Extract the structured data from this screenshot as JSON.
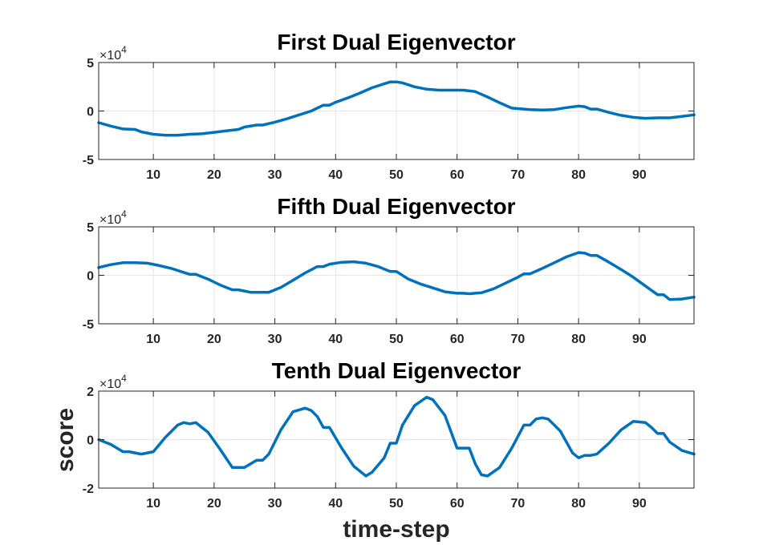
{
  "figure": {
    "xlabel": "time-step",
    "ylabel": "score"
  },
  "chart_data": [
    {
      "type": "line",
      "title": "First Dual Eigenvector",
      "xlabel": "",
      "ylabel": "",
      "xlim": [
        1,
        99
      ],
      "ylim": [
        -50000,
        50000
      ],
      "xticks": [
        10,
        20,
        30,
        40,
        50,
        60,
        70,
        80,
        90
      ],
      "yticks": [
        -5,
        0,
        5
      ],
      "exponent_label": "×10",
      "exponent_power": "4",
      "grid": true,
      "line_color": "#0072BD",
      "series": [
        {
          "x": [
            1,
            3,
            5,
            7,
            8,
            10,
            12,
            14,
            16,
            18,
            20,
            22,
            24,
            25,
            27,
            28,
            30,
            32,
            34,
            36,
            38,
            39,
            40,
            42,
            44,
            46,
            48,
            49,
            50,
            51,
            53,
            55,
            57,
            59,
            61,
            63,
            65,
            67,
            69,
            71,
            72,
            74,
            76,
            78,
            80,
            81,
            82,
            83,
            85,
            87,
            89,
            91,
            93,
            95,
            97,
            99
          ],
          "y": [
            -12000,
            -15500,
            -18500,
            -19000,
            -21500,
            -24000,
            -25000,
            -25000,
            -24000,
            -23500,
            -22000,
            -20500,
            -19000,
            -16500,
            -14500,
            -14500,
            -11500,
            -8000,
            -4000,
            0,
            6000,
            6000,
            9000,
            13500,
            18500,
            24000,
            28000,
            30000,
            30000,
            29000,
            25000,
            22500,
            21500,
            21500,
            21500,
            20000,
            14500,
            8500,
            3000,
            2000,
            1500,
            1000,
            1500,
            3500,
            5000,
            4500,
            2000,
            2000,
            -1500,
            -4500,
            -6500,
            -7500,
            -7000,
            -7000,
            -5500,
            -4000
          ]
        }
      ]
    },
    {
      "type": "line",
      "title": "Fifth Dual Eigenvector",
      "xlabel": "",
      "ylabel": "",
      "xlim": [
        1,
        99
      ],
      "ylim": [
        -50000,
        50000
      ],
      "xticks": [
        10,
        20,
        30,
        40,
        50,
        60,
        70,
        80,
        90
      ],
      "yticks": [
        -5,
        0,
        5
      ],
      "exponent_label": "×10",
      "exponent_power": "4",
      "grid": true,
      "line_color": "#0072BD",
      "series": [
        {
          "x": [
            1,
            3,
            5,
            7,
            9,
            11,
            13,
            15,
            16,
            17,
            19,
            21,
            23,
            24,
            26,
            28,
            29,
            31,
            33,
            35,
            37,
            38,
            39,
            41,
            43,
            45,
            47,
            49,
            50,
            52,
            54,
            56,
            58,
            60,
            61,
            62,
            64,
            66,
            68,
            70,
            71,
            72,
            74,
            76,
            78,
            80,
            81,
            82,
            83,
            85,
            87,
            89,
            91,
            93,
            94,
            95,
            97,
            99
          ],
          "y": [
            8000,
            11000,
            13000,
            13000,
            12500,
            10000,
            7000,
            3000,
            1000,
            1000,
            -4000,
            -10000,
            -15000,
            -15000,
            -17500,
            -17500,
            -17500,
            -12500,
            -5000,
            2500,
            9000,
            9000,
            11500,
            13500,
            14000,
            12500,
            9000,
            4000,
            4000,
            -4000,
            -9000,
            -13000,
            -17000,
            -18500,
            -18500,
            -19000,
            -18000,
            -14000,
            -8000,
            -2000,
            1500,
            1500,
            7000,
            13000,
            19000,
            23500,
            23000,
            20500,
            20500,
            13500,
            6000,
            -2000,
            -11000,
            -20000,
            -20000,
            -25000,
            -24500,
            -22500
          ]
        }
      ]
    },
    {
      "type": "line",
      "title": "Tenth Dual Eigenvector",
      "xlabel": "",
      "ylabel": "",
      "xlim": [
        1,
        99
      ],
      "ylim": [
        -20000,
        20000
      ],
      "xticks": [
        10,
        20,
        30,
        40,
        50,
        60,
        70,
        80,
        90
      ],
      "yticks": [
        -2,
        0,
        2
      ],
      "exponent_label": "×10",
      "exponent_power": "4",
      "grid": true,
      "line_color": "#0072BD",
      "series": [
        {
          "x": [
            1,
            3,
            5,
            6,
            8,
            9,
            10,
            12,
            14,
            15,
            16,
            17,
            19,
            21,
            23,
            24,
            25,
            27,
            28,
            29,
            31,
            33,
            35,
            36,
            37,
            38,
            39,
            41,
            43,
            45,
            46,
            48,
            49,
            50,
            51,
            53,
            55,
            56,
            58,
            60,
            61,
            62,
            63,
            64,
            65,
            67,
            69,
            71,
            72,
            73,
            74,
            75,
            77,
            79,
            80,
            81,
            82,
            83,
            85,
            87,
            89,
            91,
            92,
            93,
            94,
            95,
            97,
            99
          ],
          "y": [
            0,
            -2000,
            -5000,
            -5000,
            -6000,
            -5500,
            -5000,
            1000,
            6000,
            7000,
            6500,
            7000,
            3000,
            -4000,
            -11500,
            -11500,
            -11500,
            -8500,
            -8500,
            -6000,
            4000,
            11500,
            13000,
            12000,
            9500,
            5000,
            5000,
            -3500,
            -11000,
            -15000,
            -13500,
            -7500,
            -1500,
            -1500,
            6000,
            14000,
            17500,
            16500,
            10000,
            -3500,
            -3500,
            -3500,
            -10000,
            -14500,
            -15000,
            -11500,
            -3500,
            6000,
            6000,
            8500,
            9000,
            8500,
            3500,
            -5500,
            -7500,
            -6500,
            -6500,
            -6000,
            -1500,
            4000,
            7500,
            7000,
            5000,
            2500,
            2500,
            -1000,
            -4500,
            -6000
          ]
        }
      ]
    }
  ]
}
